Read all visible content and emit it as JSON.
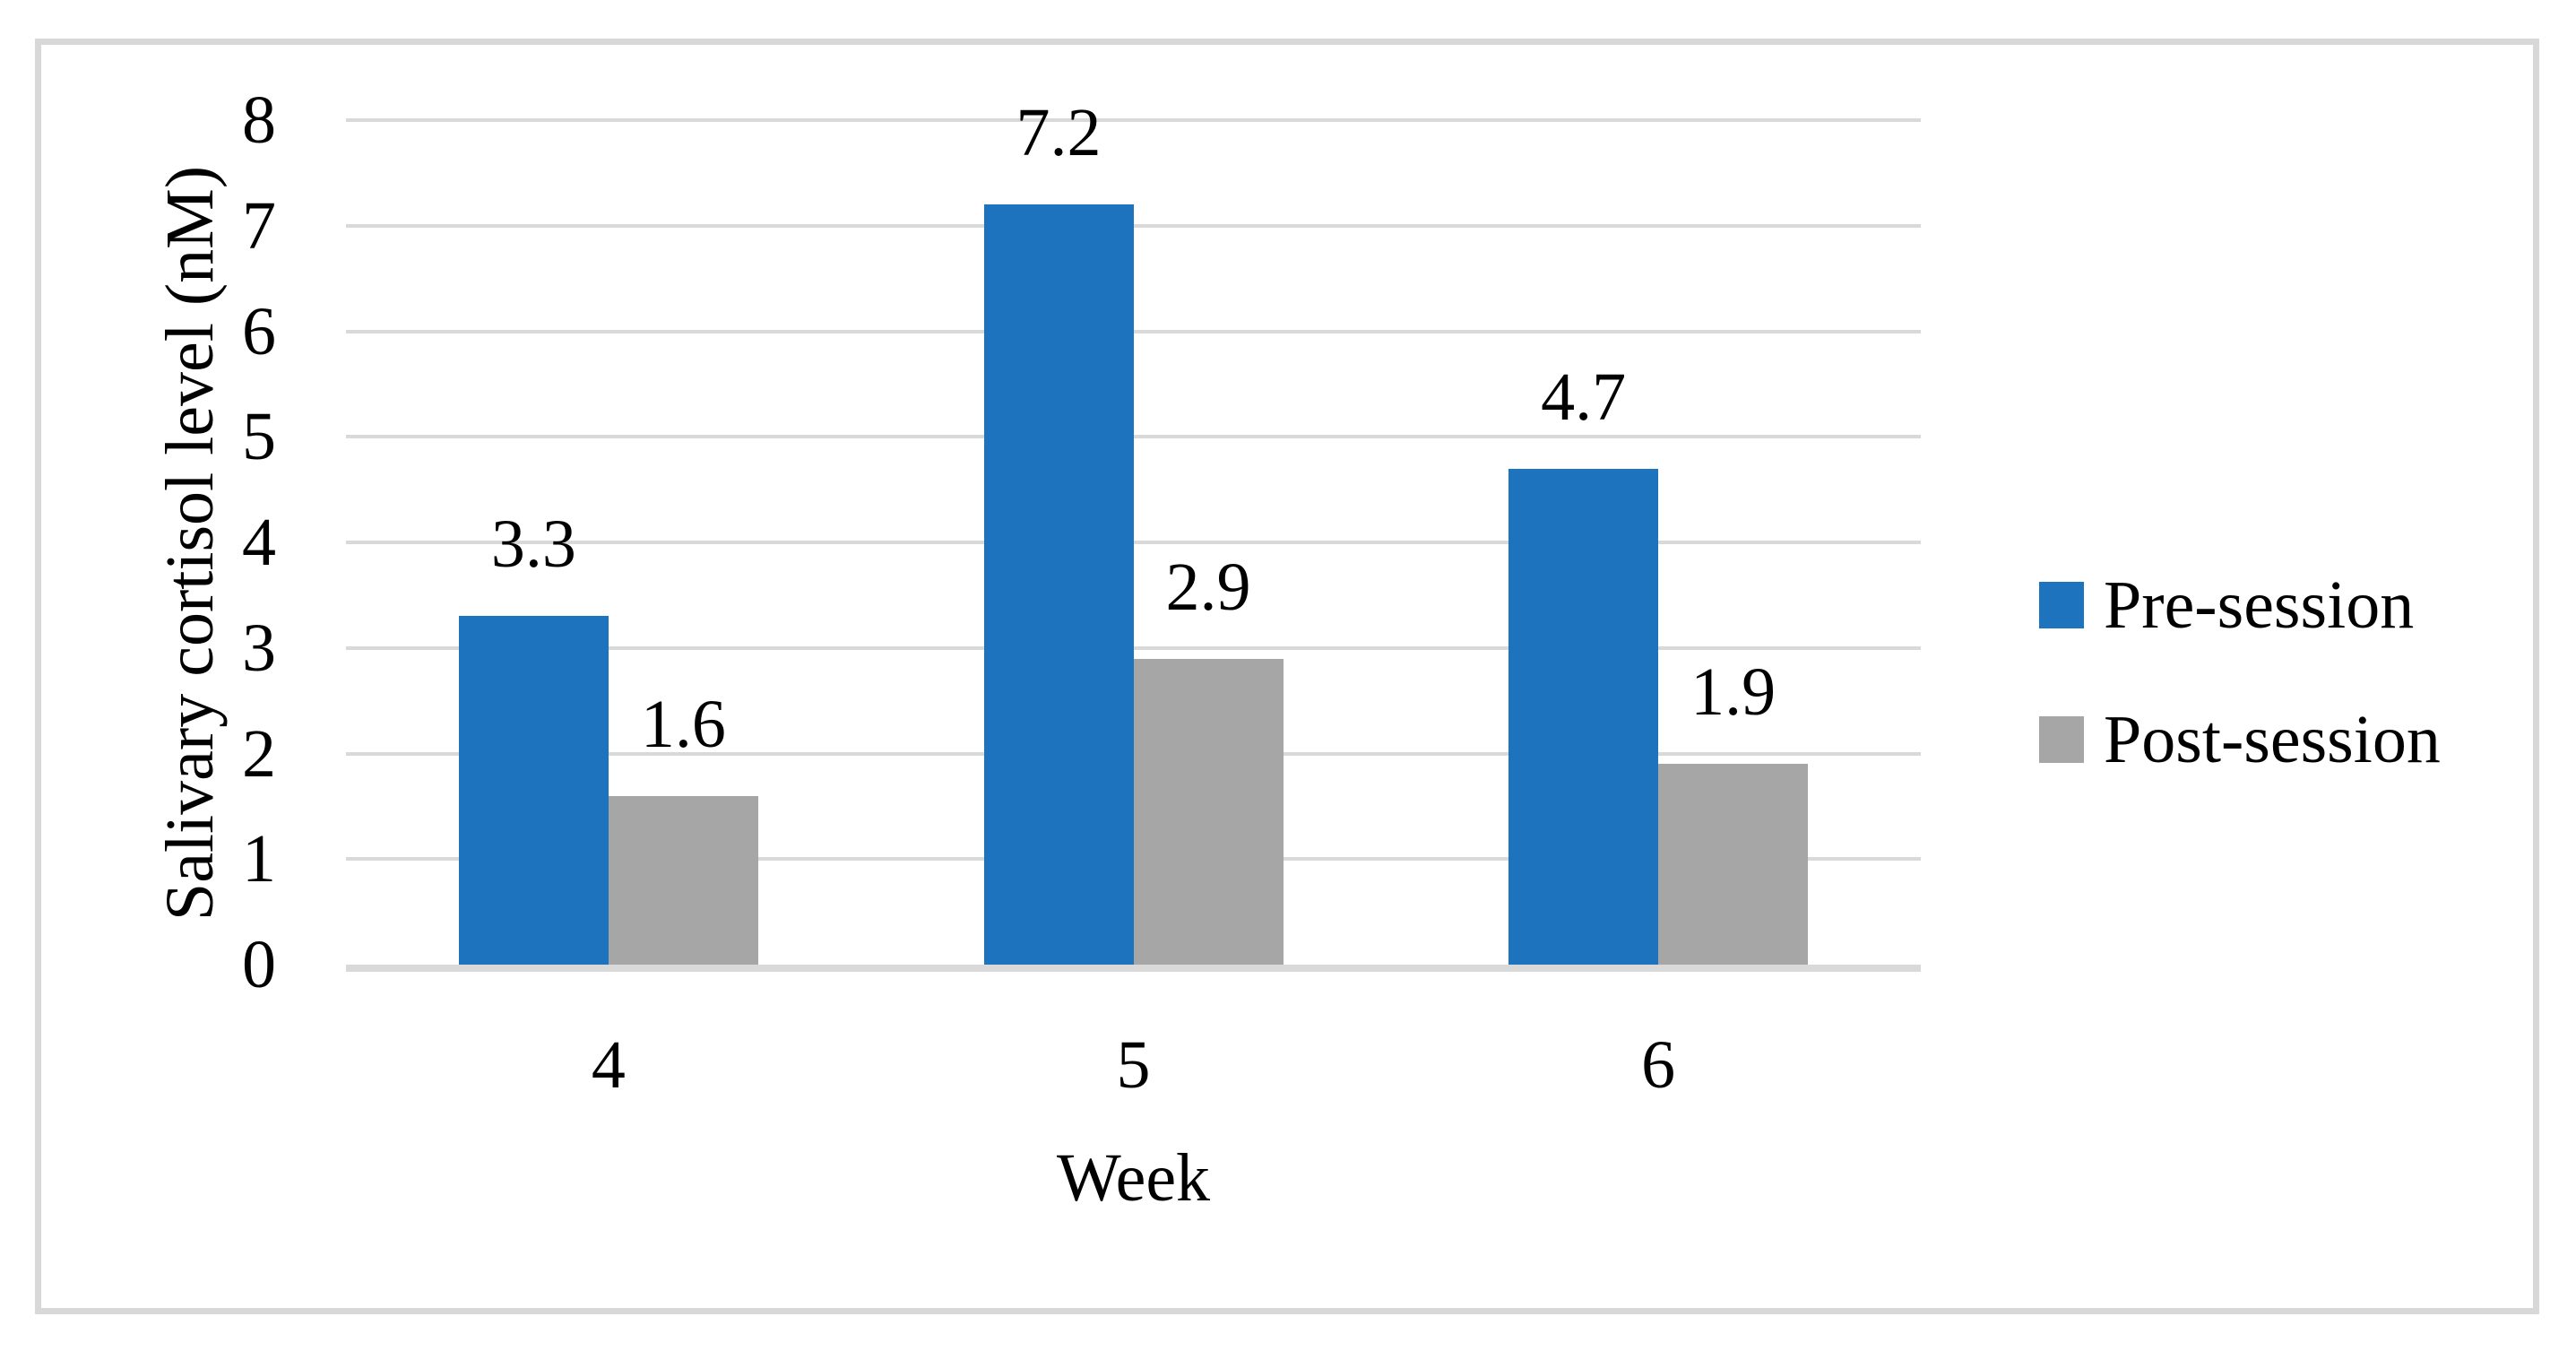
{
  "chart_data": {
    "type": "bar",
    "title": "",
    "categories": [
      "4",
      "5",
      "6"
    ],
    "series": [
      {
        "name": "Pre-session",
        "color": "#1E73BE",
        "values": [
          3.3,
          7.2,
          4.7
        ],
        "value_labels": [
          "3.3",
          "7.2",
          "4.7"
        ]
      },
      {
        "name": "Post-session",
        "color": "#A6A6A6",
        "values": [
          1.6,
          2.9,
          1.9
        ],
        "value_labels": [
          "1.6",
          "2.9",
          "1.9"
        ]
      }
    ],
    "xlabel": "Week",
    "ylabel": "Salivary cortisol level (nM)",
    "ylim": [
      0,
      8
    ],
    "yticks": [
      "0",
      "1",
      "2",
      "3",
      "4",
      "5",
      "6",
      "7",
      "8"
    ],
    "grid": true,
    "data_labels": true,
    "legend_position": "right"
  },
  "colors": {
    "gridline": "#D9D9D9",
    "axis_line": "#D9D9D9",
    "frame_border": "#D8D8D8",
    "text": "#000000",
    "background": "#FFFFFF"
  }
}
